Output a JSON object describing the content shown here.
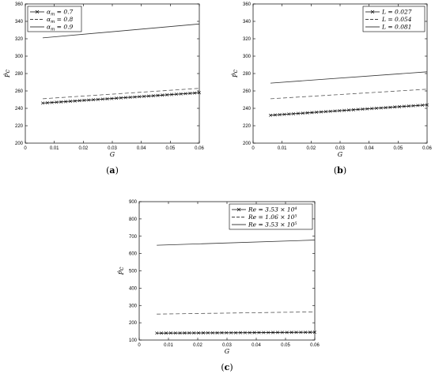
{
  "chart_data": [
    {
      "type": "line",
      "panel_label": "a",
      "xlabel": "G",
      "ylabel": "P̂c",
      "xlim": [
        0,
        0.06
      ],
      "ylim": [
        200,
        360
      ],
      "x_ticks": [
        "0",
        "0.01",
        "0.02",
        "0.03",
        "0.04",
        "0.05",
        "0.06"
      ],
      "y_ticks": [
        "200",
        "220",
        "240",
        "260",
        "280",
        "300",
        "320",
        "340",
        "360"
      ],
      "legend_position": "top-left",
      "series": [
        {
          "name": "α_m = 0.7",
          "style": "solid-cross",
          "x": [
            0.006,
            0.06
          ],
          "y": [
            246,
            258
          ]
        },
        {
          "name": "α_m = 0.8",
          "style": "dashed",
          "x": [
            0.006,
            0.06
          ],
          "y": [
            251,
            263
          ]
        },
        {
          "name": "α_m = 0.9",
          "style": "solid",
          "x": [
            0.006,
            0.06
          ],
          "y": [
            321,
            337
          ]
        }
      ]
    },
    {
      "type": "line",
      "panel_label": "b",
      "xlabel": "G",
      "ylabel": "P̂c",
      "xlim": [
        0,
        0.06
      ],
      "ylim": [
        200,
        360
      ],
      "x_ticks": [
        "0",
        "0.01",
        "0.02",
        "0.03",
        "0.04",
        "0.05",
        "0.06"
      ],
      "y_ticks": [
        "200",
        "220",
        "240",
        "260",
        "280",
        "300",
        "320",
        "340",
        "360"
      ],
      "legend_position": "top-right",
      "series": [
        {
          "name": "L = 0.027",
          "style": "solid-cross",
          "x": [
            0.006,
            0.06
          ],
          "y": [
            232,
            244
          ]
        },
        {
          "name": "L = 0.054",
          "style": "dashed",
          "x": [
            0.006,
            0.06
          ],
          "y": [
            251,
            262
          ]
        },
        {
          "name": "L = 0.081",
          "style": "solid",
          "x": [
            0.006,
            0.06
          ],
          "y": [
            269,
            282
          ]
        }
      ]
    },
    {
      "type": "line",
      "panel_label": "c",
      "xlabel": "G",
      "ylabel": "P̂c",
      "xlim": [
        0,
        0.06
      ],
      "ylim": [
        100,
        900
      ],
      "x_ticks": [
        "0",
        "0.01",
        "0.02",
        "0.03",
        "0.04",
        "0.05",
        "0.06"
      ],
      "y_ticks": [
        "100",
        "200",
        "300",
        "400",
        "500",
        "600",
        "700",
        "800",
        "900"
      ],
      "legend_position": "top-right",
      "series": [
        {
          "name": "Re = 3.53 × 10⁴",
          "style": "solid-cross",
          "x": [
            0.006,
            0.06
          ],
          "y": [
            140,
            145
          ]
        },
        {
          "name": "Re = 1.06 × 10⁵",
          "style": "dashed",
          "x": [
            0.006,
            0.06
          ],
          "y": [
            250,
            263
          ]
        },
        {
          "name": "Re = 3.53 × 10⁵",
          "style": "solid",
          "x": [
            0.006,
            0.06
          ],
          "y": [
            648,
            678
          ]
        }
      ]
    }
  ]
}
